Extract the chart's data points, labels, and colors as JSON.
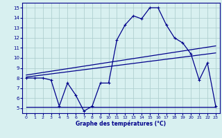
{
  "xlabel": "Graphe des températures (°C)",
  "bg_color": "#d8f0f0",
  "line_color": "#00008b",
  "grid_color": "#b0d0d0",
  "x_data": [
    0,
    1,
    2,
    3,
    4,
    5,
    6,
    7,
    8,
    9,
    10,
    11,
    12,
    13,
    14,
    15,
    16,
    17,
    18,
    19,
    20,
    21,
    22,
    23
  ],
  "y_main": [
    8.0,
    8.0,
    8.0,
    7.8,
    5.2,
    7.5,
    6.3,
    4.7,
    5.2,
    7.5,
    7.5,
    11.8,
    13.3,
    14.2,
    13.9,
    15.0,
    15.0,
    13.3,
    12.0,
    11.5,
    10.4,
    7.8,
    9.5,
    5.2
  ],
  "trend1_x": [
    0,
    23
  ],
  "trend1_y": [
    8.3,
    11.2
  ],
  "trend2_x": [
    0,
    23
  ],
  "trend2_y": [
    8.1,
    10.5
  ],
  "trend3_x": [
    0,
    23
  ],
  "trend3_y": [
    5.15,
    5.15
  ],
  "xlim": [
    -0.5,
    23.5
  ],
  "ylim": [
    4.5,
    15.5
  ],
  "yticks": [
    5,
    6,
    7,
    8,
    9,
    10,
    11,
    12,
    13,
    14,
    15
  ],
  "xticks": [
    0,
    1,
    2,
    3,
    4,
    5,
    6,
    7,
    8,
    9,
    10,
    11,
    12,
    13,
    14,
    15,
    16,
    17,
    18,
    19,
    20,
    21,
    22,
    23
  ]
}
